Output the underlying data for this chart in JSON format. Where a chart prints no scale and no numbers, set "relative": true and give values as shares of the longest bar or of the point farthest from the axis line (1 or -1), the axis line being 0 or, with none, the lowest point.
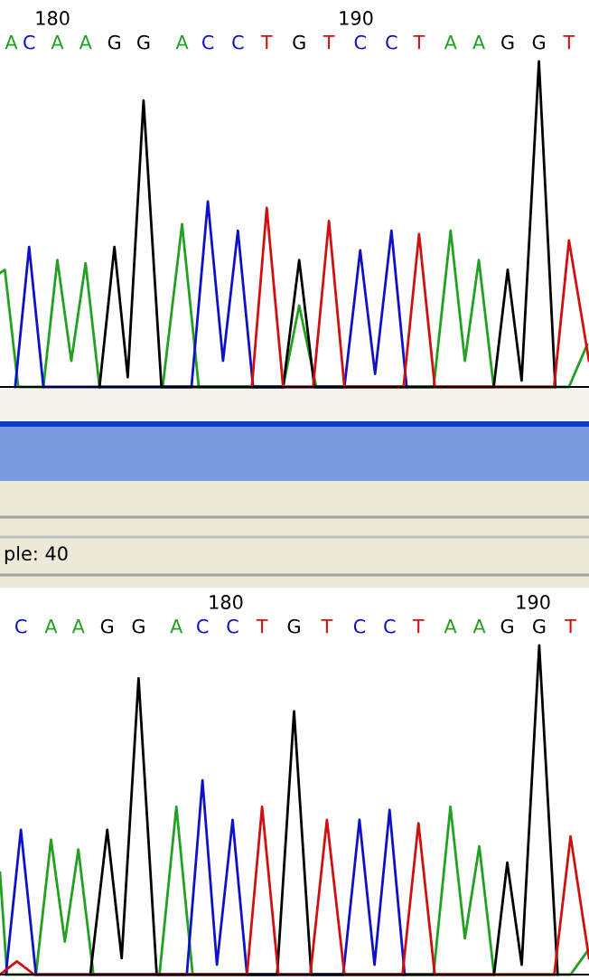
{
  "chart_data": [
    {
      "type": "line",
      "relative": true,
      "xlim": [
        178.27,
        197.68
      ],
      "xticks": [
        180,
        190
      ],
      "tick_labels": "x",
      "grid": false,
      "annotations": [
        "A",
        "C",
        "A",
        "A",
        "G",
        "G",
        "A",
        "C",
        "C",
        "T",
        "G",
        "T",
        "C",
        "C",
        "T",
        "A",
        "A",
        "G",
        "G",
        "T",
        "ple: 40"
      ],
      "series": [
        {
          "color": "#22a022",
          "x": [
            178.27,
            178.43,
            178.87,
            179.7,
            180.16,
            180.62,
            181.09,
            181.55,
            183.63,
            184.27,
            184.82,
            187.6,
            188.13,
            188.69,
            192.56,
            193.12,
            193.59,
            194.05,
            194.54,
            197.02,
            197.62
          ],
          "values": [
            0.35,
            0.36,
            0,
            0,
            0.39,
            0.08,
            0.38,
            0,
            0,
            0.5,
            0,
            0,
            0.25,
            0,
            0,
            0.48,
            0.08,
            0.39,
            0,
            0,
            0.13
          ]
        },
        {
          "color": "#1010c8",
          "x": [
            178.77,
            179.23,
            179.7,
            184.58,
            185.12,
            185.62,
            186.11,
            186.61,
            189.62,
            190.14,
            190.63,
            191.17,
            191.67
          ],
          "values": [
            0,
            0.43,
            0,
            0,
            0.57,
            0.08,
            0.48,
            0,
            0,
            0.42,
            0.04,
            0.48,
            0
          ]
        },
        {
          "color": "#000000",
          "x": [
            181.55,
            182.04,
            182.48,
            183.0,
            183.59,
            187.6,
            188.13,
            188.63,
            194.54,
            195.0,
            195.46,
            196.03,
            196.57
          ],
          "values": [
            0,
            0.43,
            0.03,
            0.88,
            0,
            0,
            0.39,
            0,
            0,
            0.36,
            0.02,
            1.0,
            0
          ]
        },
        {
          "color": "#d01010",
          "x": [
            186.57,
            187.06,
            187.6,
            188.59,
            189.11,
            189.62,
            191.57,
            192.08,
            192.6,
            196.53,
            197.02,
            197.68
          ],
          "values": [
            0,
            0.55,
            0,
            0,
            0.51,
            0,
            0,
            0.47,
            0,
            0,
            0.45,
            0.08
          ]
        }
      ]
    },
    {
      "type": "line",
      "relative": true,
      "xlim": [
        172.65,
        191.82
      ],
      "xticks": [
        180,
        190
      ],
      "tick_labels": "x",
      "grid": false,
      "annotations": [
        "C",
        "A",
        "A",
        "G",
        "G",
        "A",
        "C",
        "C",
        "T",
        "G",
        "T",
        "C",
        "C",
        "T",
        "A",
        "A",
        "G",
        "G",
        "T"
      ],
      "series": [
        {
          "color": "#22a022",
          "x": [
            172.65,
            172.88,
            173.82,
            174.31,
            174.76,
            175.2,
            175.69,
            177.84,
            178.39,
            178.92,
            186.76,
            187.31,
            187.78,
            188.25,
            188.73,
            191.22,
            191.76
          ],
          "values": [
            0.31,
            0,
            0,
            0.41,
            0.1,
            0.38,
            0,
            0,
            0.51,
            0,
            0,
            0.51,
            0.11,
            0.39,
            0,
            0,
            0.07
          ]
        },
        {
          "color": "#1010c8",
          "x": [
            172.84,
            173.33,
            173.82,
            178.73,
            179.24,
            179.71,
            180.22,
            180.69,
            183.82,
            184.35,
            184.84,
            185.33,
            185.82
          ],
          "values": [
            0,
            0.44,
            0,
            0,
            0.59,
            0.03,
            0.47,
            0,
            0,
            0.47,
            0.03,
            0.5,
            0
          ]
        },
        {
          "color": "#000000",
          "x": [
            175.59,
            176.14,
            176.61,
            177.16,
            177.75,
            181.67,
            182.22,
            182.78,
            188.73,
            189.16,
            189.63,
            190.2,
            190.8
          ],
          "values": [
            0,
            0.44,
            0.05,
            0.9,
            0,
            0,
            0.8,
            0,
            0,
            0.34,
            0.03,
            1.0,
            0
          ]
        },
        {
          "color": "#d01010",
          "x": [
            172.65,
            173.2,
            173.76,
            180.69,
            181.18,
            181.71,
            182.75,
            183.29,
            183.86,
            185.75,
            186.27,
            186.8,
            190.69,
            191.22,
            191.82
          ],
          "values": [
            0,
            0.04,
            0,
            0,
            0.51,
            0,
            0,
            0.47,
            0,
            0,
            0.46,
            0,
            0,
            0.42,
            0.05
          ]
        }
      ]
    }
  ]
}
